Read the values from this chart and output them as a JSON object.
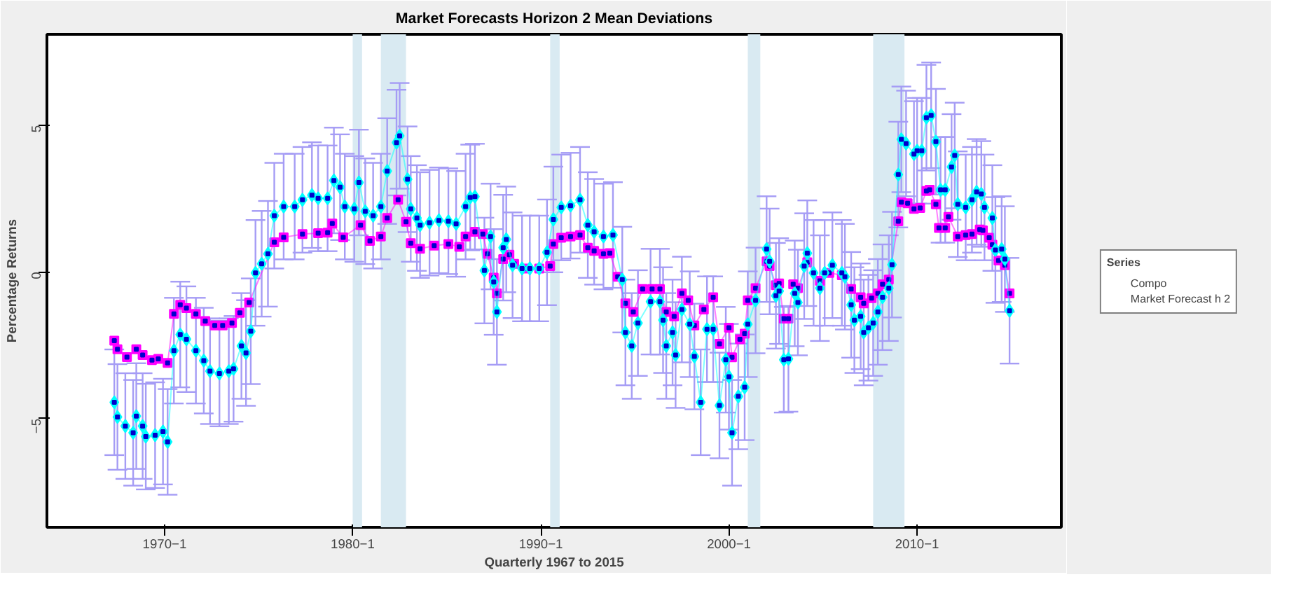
{
  "chart_data": {
    "type": "line",
    "title": "Market Forecasts Horizon 2 Mean Deviations",
    "xlabel": "Quarterly 1967 to 2015",
    "ylabel": "Percentage Returns",
    "legend_title": "Series",
    "legend": "right",
    "marker": "square",
    "line_style": "solid",
    "xlim": [
      "1963-10",
      "2017-09"
    ],
    "ylim": [
      -8.7,
      8.1
    ],
    "xticks": [
      {
        "value": "1970-01",
        "label": "1970−1"
      },
      {
        "value": "1980-01",
        "label": "1980−1"
      },
      {
        "value": "1990-01",
        "label": "1990−1"
      },
      {
        "value": "2000-01",
        "label": "2000−1"
      },
      {
        "value": "2010-01",
        "label": "2010−1"
      }
    ],
    "yticks": [
      {
        "value": -5,
        "label": "−5"
      },
      0,
      5
    ],
    "bands": [
      {
        "axis": "x",
        "from": "1980-01",
        "to": "1980-07",
        "color": "#d9eaf2"
      },
      {
        "axis": "x",
        "from": "1981-07",
        "to": "1982-11",
        "color": "#d9eaf2"
      },
      {
        "axis": "x",
        "from": "1990-07",
        "to": "1991-01",
        "color": "#d9eaf2"
      },
      {
        "axis": "x",
        "from": "2001-01",
        "to": "2001-09",
        "color": "#d9eaf2"
      },
      {
        "axis": "x",
        "from": "2007-09",
        "to": "2009-05",
        "color": "#d9eaf2"
      }
    ],
    "series": [
      {
        "name": "Compo",
        "color": "#ff00ff",
        "x": [
          "1967-05",
          "1967-07",
          "1968-01",
          "1968-07",
          "1968-11",
          "1969-05",
          "1969-09",
          "1970-03",
          "1970-07",
          "1970-11",
          "1971-03",
          "1971-09",
          "1972-03",
          "1972-09",
          "1973-02",
          "1973-08",
          "1974-01",
          "1974-07",
          "1975-11",
          "1976-05",
          "1977-05",
          "1978-03",
          "1978-09",
          "1978-12",
          "1979-07",
          "1980-06",
          "1980-12",
          "1981-07",
          "1981-11",
          "1982-06",
          "1982-11",
          "1983-02",
          "1983-08",
          "1984-05",
          "1985-02",
          "1985-09",
          "1986-01",
          "1986-07",
          "1986-12",
          "1987-03",
          "1987-07",
          "1987-09",
          "1988-01",
          "1988-05",
          "1988-08",
          "1989-03",
          "1989-12",
          "1990-07",
          "1990-09",
          "1991-02",
          "1991-08",
          "1992-02",
          "1992-07",
          "1992-11",
          "1993-05",
          "1993-09",
          "1994-02",
          "1994-07",
          "1994-12",
          "1995-06",
          "1995-12",
          "1996-05",
          "1996-09",
          "1997-02",
          "1997-07",
          "1997-11",
          "1998-03",
          "1998-09",
          "1999-03",
          "1999-07",
          "2000-01",
          "2000-03",
          "2000-08",
          "2000-11",
          "2001-01",
          "2001-06",
          "2002-01",
          "2002-03",
          "2002-07",
          "2002-09",
          "2002-12",
          "2003-03",
          "2003-06",
          "2003-09",
          "2004-03",
          "2004-11",
          "2005-05",
          "2006-01",
          "2006-07",
          "2007-01",
          "2007-03",
          "2007-08",
          "2007-12",
          "2008-03",
          "2008-07",
          "2009-01",
          "2009-03",
          "2009-07",
          "2009-11",
          "2010-03",
          "2010-07",
          "2010-09",
          "2011-01",
          "2011-03",
          "2011-07",
          "2011-09",
          "2012-03",
          "2012-08",
          "2012-12",
          "2013-05",
          "2013-07",
          "2013-11",
          "2014-01",
          "2014-05",
          "2014-09",
          "2014-12"
        ],
        "values": [
          -2.34,
          -2.63,
          -2.9,
          -2.63,
          -2.83,
          -3.0,
          -2.96,
          -3.1,
          -1.43,
          -1.12,
          -1.23,
          -1.43,
          -1.67,
          -1.82,
          -1.82,
          -1.74,
          -1.39,
          -1.04,
          1.01,
          1.18,
          1.29,
          1.32,
          1.34,
          1.65,
          1.18,
          1.6,
          1.06,
          1.21,
          1.84,
          2.46,
          1.71,
          0.98,
          0.79,
          0.9,
          0.95,
          0.86,
          1.21,
          1.37,
          1.29,
          0.62,
          -0.19,
          -0.73,
          0.44,
          0.59,
          0.28,
          0.12,
          0.12,
          0.2,
          0.95,
          1.17,
          1.21,
          1.26,
          0.83,
          0.72,
          0.62,
          0.64,
          -0.16,
          -1.07,
          -1.36,
          -0.58,
          -0.58,
          -0.58,
          -1.36,
          -1.51,
          -0.73,
          -0.97,
          -1.82,
          -1.28,
          -0.86,
          -2.45,
          -1.9,
          -2.91,
          -2.29,
          -2.1,
          -0.97,
          -0.55,
          0.36,
          0.2,
          -0.45,
          -0.39,
          -1.59,
          -1.59,
          -0.42,
          -0.55,
          0.33,
          -0.3,
          -0.03,
          -0.11,
          -0.58,
          -0.86,
          -1.07,
          -0.89,
          -0.73,
          -0.42,
          -0.26,
          1.73,
          2.38,
          2.34,
          2.15,
          2.18,
          2.76,
          2.8,
          2.31,
          1.5,
          1.5,
          1.88,
          1.21,
          1.26,
          1.29,
          1.45,
          1.42,
          1.17,
          0.93,
          0.39,
          0.23,
          -0.73
        ]
      },
      {
        "name": "Market Forecast h 2",
        "color": "#00ffff",
        "marker": "diamond",
        "x": [
          "1967-05",
          "1967-07",
          "1967-12",
          "1968-05",
          "1968-07",
          "1968-11",
          "1969-01",
          "1969-07",
          "1969-12",
          "1970-03",
          "1970-07",
          "1970-11",
          "1971-03",
          "1971-09",
          "1972-02",
          "1972-06",
          "1972-12",
          "1973-06",
          "1973-09",
          "1974-02",
          "1974-05",
          "1974-08",
          "1974-11",
          "1975-03",
          "1975-07",
          "1975-11",
          "1976-05",
          "1976-12",
          "1977-05",
          "1977-11",
          "1978-03",
          "1978-09",
          "1979-01",
          "1979-05",
          "1979-08",
          "1980-02",
          "1980-05",
          "1980-09",
          "1981-02",
          "1981-07",
          "1981-11",
          "1982-05",
          "1982-07",
          "1982-12",
          "1983-02",
          "1983-06",
          "1983-08",
          "1984-02",
          "1984-08",
          "1985-02",
          "1985-07",
          "1986-01",
          "1986-04",
          "1986-07",
          "1987-01",
          "1987-05",
          "1987-07",
          "1987-09",
          "1988-01",
          "1988-03",
          "1988-07",
          "1989-01",
          "1989-06",
          "1989-12",
          "1990-05",
          "1990-09",
          "1991-02",
          "1991-08",
          "1992-02",
          "1992-07",
          "1992-11",
          "1993-05",
          "1993-11",
          "1994-05",
          "1994-07",
          "1994-11",
          "1995-03",
          "1995-11",
          "1996-05",
          "1996-07",
          "1996-09",
          "1997-01",
          "1997-03",
          "1997-07",
          "1997-12",
          "1998-03",
          "1998-07",
          "1998-11",
          "1999-03",
          "1999-07",
          "1999-11",
          "2000-01",
          "2000-03",
          "2000-07",
          "2000-11",
          "2001-01",
          "2001-06",
          "2002-01",
          "2002-03",
          "2002-07",
          "2002-09",
          "2002-12",
          "2003-03",
          "2003-07",
          "2003-09",
          "2004-01",
          "2004-03",
          "2004-07",
          "2004-11",
          "2005-02",
          "2005-07",
          "2006-01",
          "2006-03",
          "2006-07",
          "2006-09",
          "2007-01",
          "2007-03",
          "2007-06",
          "2007-09",
          "2007-12",
          "2008-03",
          "2008-07",
          "2008-09",
          "2009-01",
          "2009-03",
          "2009-06",
          "2009-11",
          "2010-01",
          "2010-04",
          "2010-07",
          "2010-10",
          "2011-01",
          "2011-04",
          "2011-07",
          "2011-11",
          "2012-01",
          "2012-03",
          "2012-08",
          "2012-12",
          "2013-03",
          "2013-06",
          "2013-08",
          "2014-01",
          "2014-03",
          "2014-07",
          "2014-09",
          "2014-12"
        ],
        "values": [
          -4.44,
          -4.94,
          -5.25,
          -5.48,
          -4.91,
          -5.25,
          -5.61,
          -5.56,
          -5.44,
          -5.79,
          -2.68,
          -2.13,
          -2.29,
          -2.68,
          -3.02,
          -3.38,
          -3.46,
          -3.38,
          -3.3,
          -2.52,
          -2.76,
          -2.02,
          -0.03,
          0.28,
          0.62,
          1.92,
          2.23,
          2.23,
          2.46,
          2.62,
          2.51,
          2.51,
          3.12,
          2.89,
          2.23,
          2.15,
          3.05,
          2.07,
          1.92,
          2.23,
          3.44,
          4.41,
          4.64,
          3.16,
          2.15,
          1.84,
          1.6,
          1.68,
          1.76,
          1.73,
          1.64,
          2.23,
          2.54,
          2.57,
          0.05,
          1.21,
          -0.34,
          -1.36,
          0.83,
          1.11,
          0.23,
          0.12,
          0.12,
          0.12,
          0.67,
          1.79,
          2.2,
          2.26,
          2.46,
          1.6,
          1.37,
          1.21,
          1.26,
          -0.26,
          -2.06,
          -2.52,
          -1.74,
          -1.01,
          -1.01,
          -1.64,
          -2.52,
          -2.06,
          -2.83,
          -1.28,
          -1.78,
          -2.88,
          -4.44,
          -1.95,
          -1.95,
          -4.55,
          -2.99,
          -3.57,
          -5.48,
          -4.24,
          -3.93,
          -1.78,
          -0.97,
          0.78,
          0.36,
          -0.81,
          -0.65,
          -2.99,
          -2.96,
          -0.73,
          -1.04,
          0.2,
          0.64,
          -0.03,
          -0.55,
          -0.03,
          0.23,
          -0.03,
          -0.16,
          -1.12,
          -1.64,
          -1.51,
          -2.06,
          -1.9,
          -1.74,
          -1.36,
          -0.86,
          -0.55,
          0.25,
          3.32,
          4.52,
          4.38,
          4.02,
          4.13,
          4.13,
          5.26,
          5.34,
          4.44,
          2.8,
          2.8,
          3.58,
          3.97,
          2.31,
          2.2,
          2.46,
          2.73,
          2.66,
          2.2,
          1.84,
          0.75,
          0.78,
          0.44,
          -1.32
        ],
        "errors": [
          1.8,
          1.8,
          1.8,
          1.8,
          1.8,
          1.8,
          1.8,
          1.8,
          1.8,
          1.8,
          1.8,
          1.8,
          1.8,
          1.8,
          1.8,
          1.8,
          1.8,
          1.8,
          1.8,
          1.8,
          1.8,
          1.8,
          1.8,
          1.8,
          1.8,
          1.8,
          1.8,
          1.8,
          1.8,
          1.8,
          1.8,
          1.8,
          1.8,
          1.8,
          1.8,
          1.8,
          1.8,
          1.8,
          1.8,
          1.8,
          1.8,
          1.8,
          1.8,
          1.8,
          1.8,
          1.8,
          1.8,
          1.8,
          1.8,
          1.8,
          1.8,
          1.8,
          1.8,
          1.8,
          1.8,
          1.8,
          1.8,
          1.8,
          1.8,
          1.8,
          1.8,
          1.8,
          1.8,
          1.8,
          1.8,
          1.8,
          1.8,
          1.8,
          1.8,
          1.8,
          1.8,
          1.8,
          1.8,
          1.8,
          1.8,
          1.8,
          1.8,
          1.8,
          1.8,
          1.8,
          1.8,
          1.8,
          1.8,
          1.8,
          1.8,
          1.8,
          1.8,
          1.8,
          1.8,
          1.8,
          1.8,
          1.8,
          1.8,
          1.8,
          1.8,
          1.8,
          1.8,
          1.8,
          1.8,
          1.8,
          1.8,
          1.8,
          1.8,
          1.8,
          1.8,
          1.8,
          1.8,
          1.8,
          1.8,
          1.8,
          1.8,
          1.8,
          1.8,
          1.8,
          1.8,
          1.8,
          1.8,
          1.8,
          1.8,
          1.8,
          1.8,
          1.8,
          1.8,
          1.8,
          1.8,
          1.8,
          1.8,
          1.8,
          1.8,
          1.8,
          1.8,
          1.8,
          1.8,
          1.8,
          1.8,
          1.8,
          1.8,
          1.8,
          1.8,
          1.8,
          1.8,
          1.8,
          1.8,
          1.8,
          1.8,
          1.8,
          1.8
        ]
      }
    ]
  }
}
